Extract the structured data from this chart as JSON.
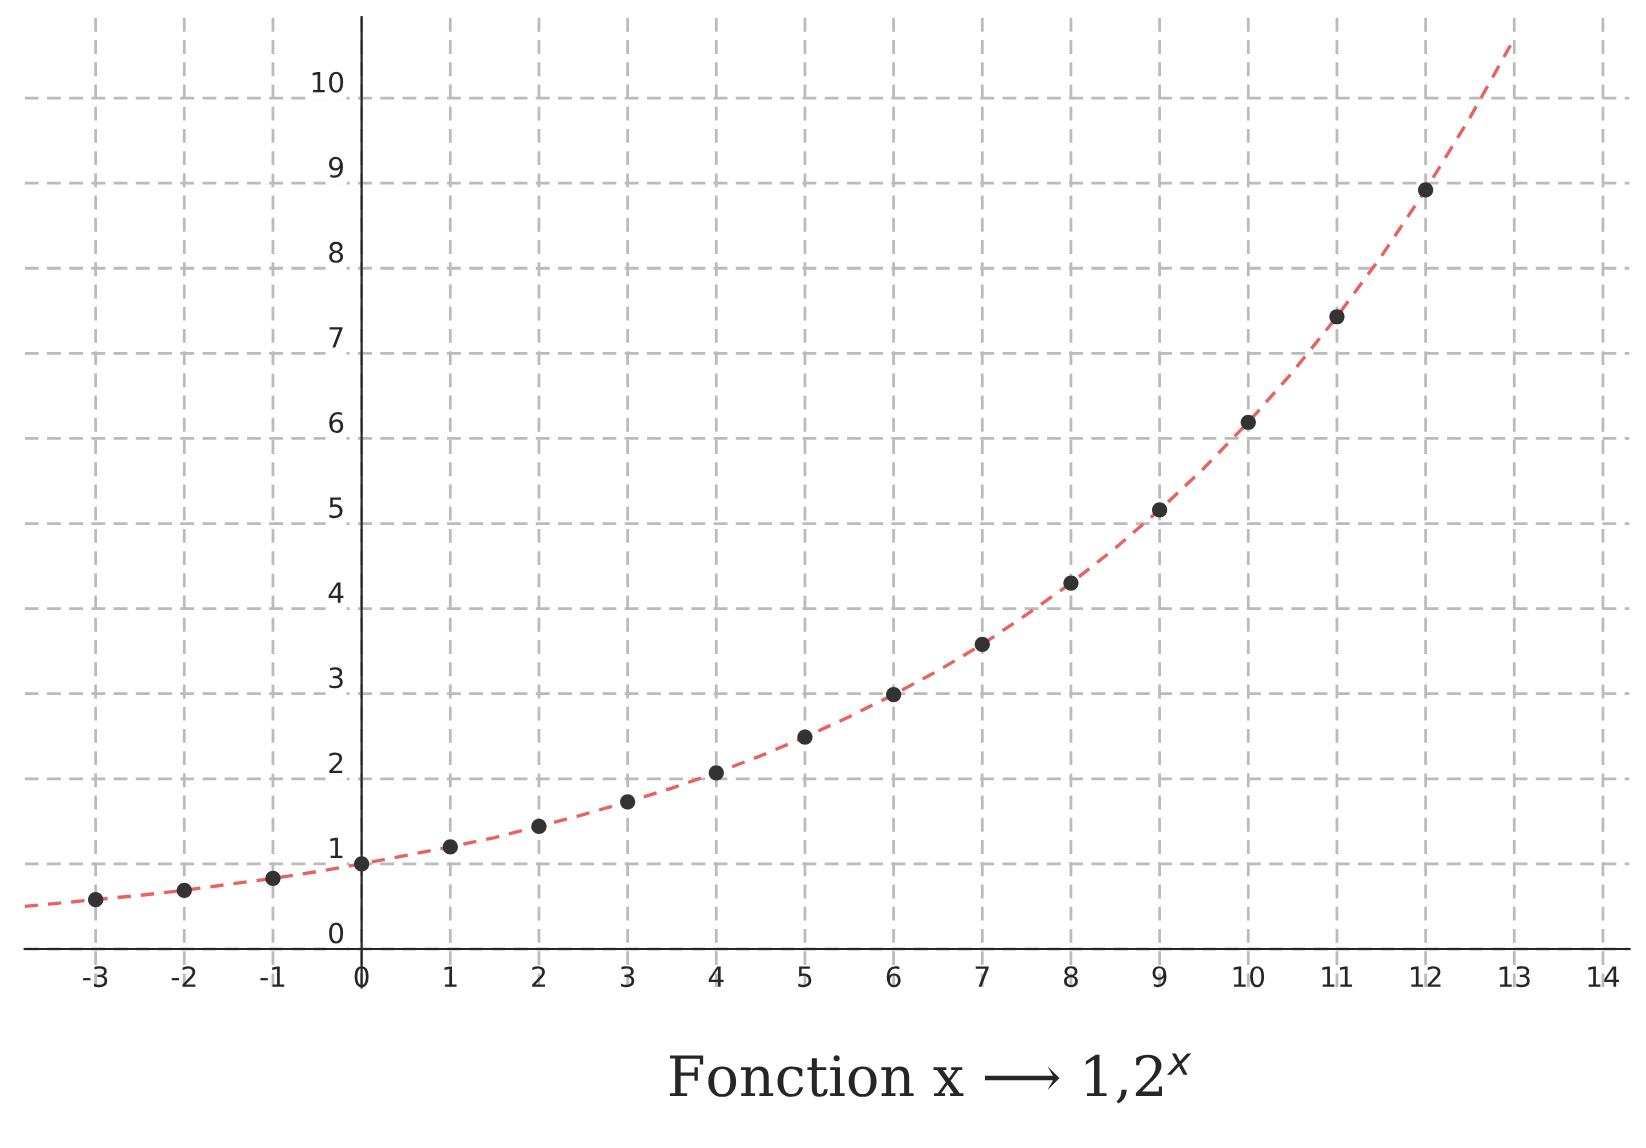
{
  "chart_data": {
    "type": "scatter",
    "title": "Fonction x ⟶ 1,2$^{x}$",
    "series": [
      {
        "type": "scatter",
        "color": "#333333",
        "marker": "circle",
        "x": [
          -3,
          -2,
          -1,
          0,
          1,
          2,
          3,
          4,
          5,
          6,
          7,
          8,
          9,
          10,
          11,
          12
        ],
        "values": [
          0.58,
          0.69,
          0.83,
          1.0,
          1.2,
          1.44,
          1.73,
          2.07,
          2.49,
          2.99,
          3.58,
          4.3,
          5.16,
          6.19,
          7.43,
          8.92
        ]
      },
      {
        "type": "line",
        "color": "#e8625f",
        "line_style": "dashed",
        "x": [
          -3.8,
          -3.5,
          -3,
          -2.5,
          -2,
          -1.5,
          -1,
          -0.5,
          0,
          0.5,
          1,
          1.5,
          2,
          2.5,
          3,
          3.5,
          4,
          4.5,
          5,
          5.5,
          6,
          6.5,
          7,
          7.5,
          8,
          8.5,
          9,
          9.5,
          10,
          10.5,
          11,
          11.5,
          12,
          12.5,
          13
        ],
        "values": [
          0.5,
          0.53,
          0.58,
          0.63,
          0.69,
          0.76,
          0.83,
          0.91,
          1.0,
          1.1,
          1.2,
          1.31,
          1.44,
          1.58,
          1.73,
          1.89,
          2.07,
          2.27,
          2.49,
          2.73,
          2.99,
          3.27,
          3.58,
          3.93,
          4.3,
          4.71,
          5.16,
          5.65,
          6.19,
          6.78,
          7.43,
          8.14,
          8.92,
          9.77,
          10.7
        ]
      }
    ],
    "xlim": [
      -3.8,
      14.3
    ],
    "ylim": [
      -0.45,
      10.95
    ],
    "xticks": [
      -3,
      -2,
      -1,
      0,
      1,
      2,
      3,
      4,
      5,
      6,
      7,
      8,
      9,
      10,
      11,
      12,
      13,
      14
    ],
    "yticks": [
      0,
      1,
      2,
      3,
      4,
      5,
      6,
      7,
      8,
      9,
      10
    ],
    "grid": true
  }
}
